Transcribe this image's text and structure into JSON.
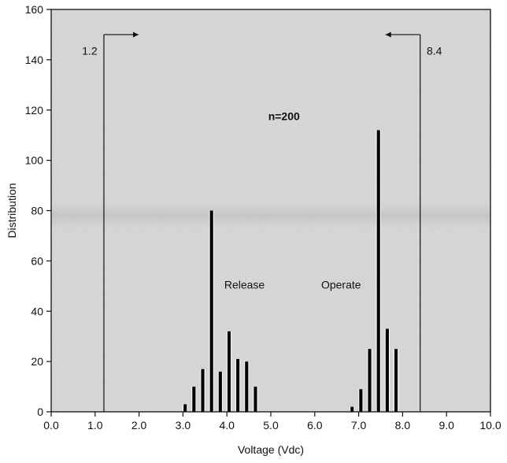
{
  "chart_data": {
    "type": "bar",
    "xlabel": "Voltage (Vdc)",
    "ylabel": "Distribution",
    "xlim": [
      0,
      10
    ],
    "ylim": [
      0,
      160
    ],
    "xticks": [
      "0.0",
      "1.0",
      "2.0",
      "3.0",
      "4.0",
      "5.0",
      "6.0",
      "7.0",
      "8.0",
      "9.0",
      "10.0"
    ],
    "yticks": [
      "0",
      "20",
      "40",
      "60",
      "80",
      "100",
      "120",
      "140",
      "160"
    ],
    "sample_label": "n=200",
    "series": [
      {
        "name": "Release",
        "x": [
          3.05,
          3.25,
          3.45,
          3.65,
          3.85,
          4.05,
          4.25,
          4.45,
          4.65
        ],
        "values": [
          3,
          10,
          17,
          80,
          16,
          32,
          21,
          20,
          10
        ]
      },
      {
        "name": "Operate",
        "x": [
          6.85,
          7.05,
          7.25,
          7.45,
          7.65,
          7.85
        ],
        "values": [
          2,
          9,
          25,
          112,
          33,
          25
        ]
      }
    ],
    "markers": [
      {
        "label": "1.2",
        "x": 1.2,
        "direction": "right"
      },
      {
        "label": "8.4",
        "x": 8.4,
        "direction": "left"
      }
    ],
    "bar_color": "#000000",
    "background": "#d9d9d9"
  }
}
